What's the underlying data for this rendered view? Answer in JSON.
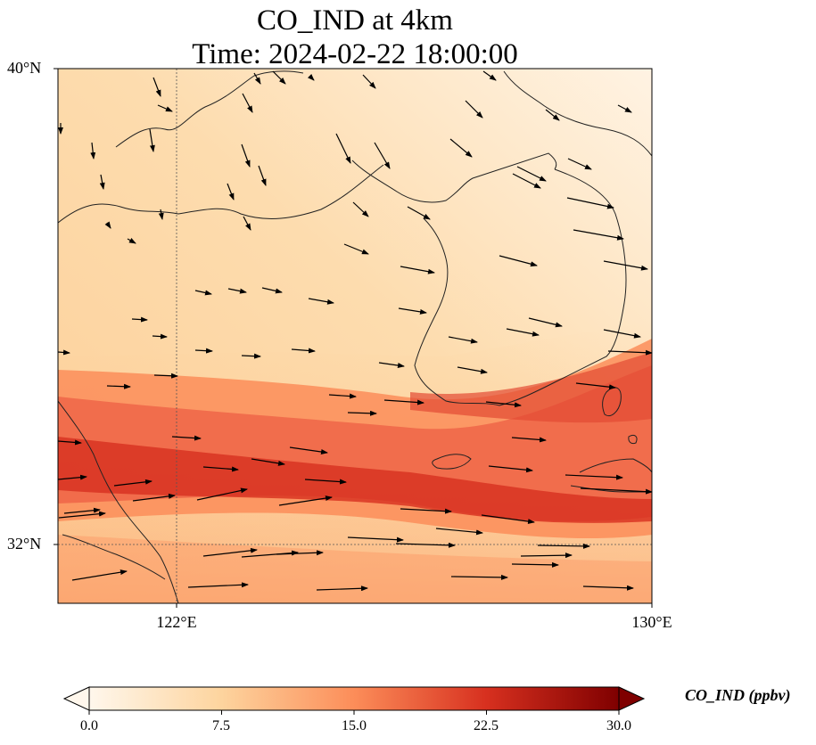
{
  "title": {
    "line1": "CO_IND at 4km",
    "line2": "Time: 2024-02-22 18:00:00"
  },
  "map": {
    "lat_ticks": [
      "40°N",
      "32°N"
    ],
    "lon_ticks": [
      "122°E",
      "130°E"
    ],
    "extent": {
      "lon": [
        120.4,
        130
      ],
      "lat": [
        31,
        40
      ]
    }
  },
  "colorbar": {
    "label": "CO_IND (ppbv)",
    "ticks": [
      "0.0",
      "7.5",
      "15.0",
      "22.5",
      "30.0"
    ],
    "range": [
      0,
      30
    ],
    "colormap": "OrRd",
    "colors": [
      "#fff7ec",
      "#fdd49e",
      "#fc8d59",
      "#d7301f",
      "#7f0000"
    ],
    "extend": "both"
  },
  "field": {
    "variable": "CO_IND",
    "units": "ppbv",
    "level": "4km",
    "pattern": "elevated band of ~20-25 ppbv from west-southwest to east near 33-34°N; ~5-8 ppbv elsewhere, lowest in the northeast"
  },
  "wind_vectors": {
    "description": "wind arrows, mostly westerly in the south, northwesterly in the north"
  }
}
